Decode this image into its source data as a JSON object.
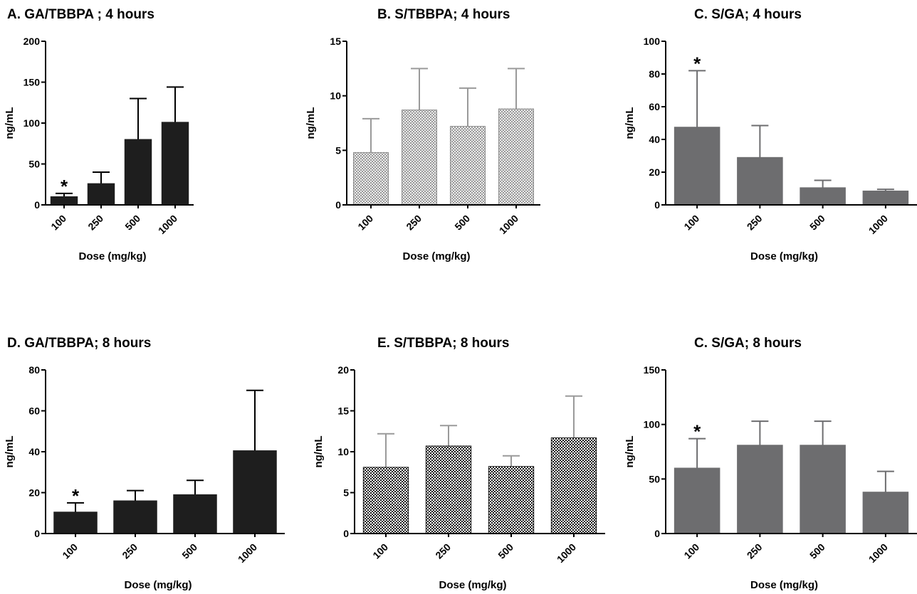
{
  "colors": {
    "dark": "#1e1e1e",
    "gray": "#6d6d6f",
    "light_hatch": "#8c8c8c",
    "dark_hatch": "#1a1a1a",
    "error_gray": "#9a9a9a"
  },
  "chart_data": [
    {
      "type": "bar",
      "title": "A. GA/TBBPA ; 4 hours",
      "xlabel": "Dose (mg/kg)",
      "ylabel": "ng/mL",
      "categories": [
        "100",
        "250",
        "500",
        "1000"
      ],
      "ylim": [
        0,
        200
      ],
      "yticks": [
        "0",
        "50",
        "100",
        "150",
        "200"
      ],
      "values": [
        10,
        26,
        80,
        101
      ],
      "errors": [
        14,
        40,
        130,
        144
      ],
      "annotations": [
        "*",
        "",
        "",
        ""
      ],
      "fill": "solid-black"
    },
    {
      "type": "bar",
      "title": "B. S/TBBPA; 4 hours",
      "xlabel": "Dose (mg/kg)",
      "ylabel": "ng/mL",
      "categories": [
        "100",
        "250",
        "500",
        "1000"
      ],
      "ylim": [
        0,
        15
      ],
      "yticks": [
        "0",
        "5",
        "10",
        "15"
      ],
      "values": [
        4.8,
        8.7,
        7.2,
        8.8
      ],
      "errors": [
        7.9,
        12.5,
        10.7,
        12.5
      ],
      "annotations": [
        "",
        "",
        "",
        ""
      ],
      "fill": "light-hatch"
    },
    {
      "type": "bar",
      "title": "C. S/GA; 4 hours",
      "xlabel": "Dose (mg/kg)",
      "ylabel": "ng/mL",
      "categories": [
        "100",
        "250",
        "500",
        "1000"
      ],
      "ylim": [
        0,
        100
      ],
      "yticks": [
        "0",
        "20",
        "40",
        "60",
        "80",
        "100"
      ],
      "values": [
        47.5,
        29,
        10.5,
        8.5
      ],
      "errors": [
        82,
        48.5,
        15,
        9.5
      ],
      "annotations": [
        "*",
        "",
        "",
        ""
      ],
      "fill": "solid-gray"
    },
    {
      "type": "bar",
      "title": "D. GA/TBBPA; 8 hours",
      "xlabel": "Dose (mg/kg)",
      "ylabel": "ng/mL",
      "categories": [
        "100",
        "250",
        "500",
        "1000"
      ],
      "ylim": [
        0,
        80
      ],
      "yticks": [
        "0",
        "20",
        "40",
        "60",
        "80"
      ],
      "values": [
        10.5,
        16,
        19,
        40.5
      ],
      "errors": [
        15,
        21,
        26,
        70
      ],
      "annotations": [
        "*",
        "",
        "",
        ""
      ],
      "fill": "solid-black"
    },
    {
      "type": "bar",
      "title": "E. S/TBBPA; 8 hours",
      "xlabel": "Dose (mg/kg)",
      "ylabel": "ng/mL",
      "categories": [
        "100",
        "250",
        "500",
        "1000"
      ],
      "ylim": [
        0,
        20
      ],
      "yticks": [
        "0",
        "5",
        "10",
        "15",
        "20"
      ],
      "values": [
        8.1,
        10.7,
        8.2,
        11.7
      ],
      "errors": [
        12.2,
        13.2,
        9.5,
        16.8
      ],
      "annotations": [
        "",
        "",
        "",
        ""
      ],
      "fill": "dark-hatch"
    },
    {
      "type": "bar",
      "title": "C. S/GA; 8 hours",
      "xlabel": "Dose (mg/kg)",
      "ylabel": "ng/mL",
      "categories": [
        "100",
        "250",
        "500",
        "1000"
      ],
      "ylim": [
        0,
        150
      ],
      "yticks": [
        "0",
        "50",
        "100",
        "150"
      ],
      "values": [
        60,
        81,
        81,
        38
      ],
      "errors": [
        87,
        103,
        103,
        57
      ],
      "annotations": [
        "*",
        "",
        "",
        ""
      ],
      "fill": "solid-gray"
    }
  ]
}
